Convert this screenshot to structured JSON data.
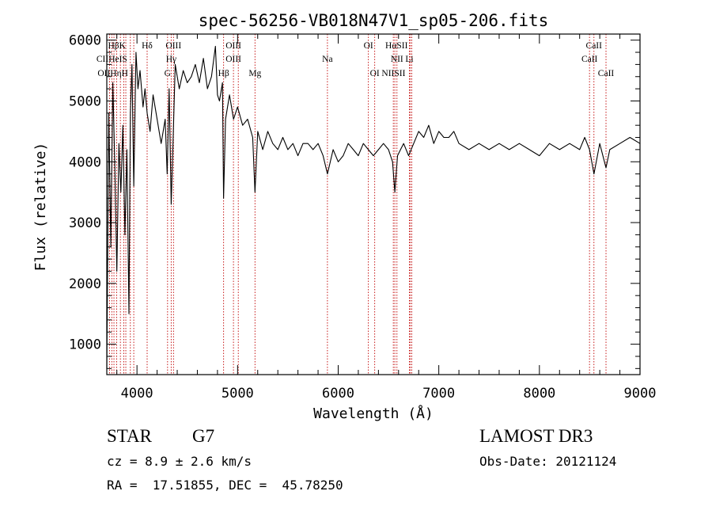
{
  "chart_data": {
    "type": "line",
    "title": "spec-56256-VB018N47V1_sp05-206.fits",
    "xlabel": "Wavelength (Å)",
    "ylabel": "Flux (relative)",
    "xlim": [
      3700,
      9000
    ],
    "ylim": [
      500,
      6100
    ],
    "x_ticks": [
      4000,
      5000,
      6000,
      7000,
      8000,
      9000
    ],
    "y_ticks": [
      1000,
      2000,
      3000,
      4000,
      5000,
      6000
    ],
    "series": [
      {
        "name": "spectrum",
        "x": [
          3700,
          3720,
          3740,
          3760,
          3780,
          3800,
          3820,
          3840,
          3860,
          3880,
          3900,
          3920,
          3934,
          3950,
          3968,
          3990,
          4010,
          4030,
          4060,
          4080,
          4101,
          4130,
          4160,
          4200,
          4240,
          4280,
          4300,
          4320,
          4340,
          4360,
          4380,
          4420,
          4460,
          4500,
          4540,
          4580,
          4620,
          4660,
          4700,
          4740,
          4780,
          4800,
          4820,
          4850,
          4861,
          4880,
          4920,
          4960,
          5000,
          5050,
          5100,
          5150,
          5173,
          5200,
          5250,
          5300,
          5350,
          5400,
          5450,
          5500,
          5550,
          5600,
          5650,
          5700,
          5750,
          5800,
          5850,
          5893,
          5950,
          6000,
          6050,
          6100,
          6150,
          6200,
          6250,
          6300,
          6350,
          6400,
          6450,
          6500,
          6540,
          6563,
          6590,
          6620,
          6650,
          6700,
          6750,
          6800,
          6850,
          6900,
          6950,
          7000,
          7050,
          7100,
          7150,
          7200,
          7300,
          7400,
          7500,
          7600,
          7700,
          7800,
          7900,
          8000,
          8100,
          8200,
          8300,
          8400,
          8450,
          8498,
          8542,
          8600,
          8662,
          8700,
          8800,
          8900,
          9000
        ],
        "y": [
          600,
          4800,
          2600,
          5300,
          3900,
          2200,
          4300,
          3500,
          4600,
          2800,
          4200,
          1500,
          4800,
          5600,
          3600,
          5800,
          5200,
          5500,
          4900,
          5200,
          4800,
          4500,
          5100,
          4700,
          4300,
          4700,
          3800,
          5200,
          3300,
          4400,
          5600,
          5200,
          5500,
          5300,
          5400,
          5600,
          5300,
          5700,
          5200,
          5400,
          5900,
          5100,
          5000,
          5300,
          3400,
          4700,
          5100,
          4700,
          4900,
          4600,
          4700,
          4400,
          3500,
          4500,
          4200,
          4500,
          4300,
          4200,
          4400,
          4200,
          4300,
          4100,
          4300,
          4300,
          4200,
          4300,
          4100,
          3800,
          4200,
          4000,
          4100,
          4300,
          4200,
          4100,
          4300,
          4200,
          4100,
          4200,
          4300,
          4200,
          4000,
          3500,
          4100,
          4200,
          4300,
          4100,
          4300,
          4500,
          4400,
          4600,
          4300,
          4500,
          4400,
          4400,
          4500,
          4300,
          4200,
          4300,
          4200,
          4300,
          4200,
          4300,
          4200,
          4100,
          4300,
          4200,
          4300,
          4200,
          4400,
          4200,
          3800,
          4300,
          3900,
          4200,
          4300,
          4400,
          4300
        ]
      }
    ],
    "spectral_lines": [
      {
        "label": "HβK",
        "wavelength": 3800,
        "row": 1
      },
      {
        "label": "Hδ",
        "wavelength": 4101,
        "row": 1
      },
      {
        "label": "OIII",
        "wavelength": 4363,
        "row": 1
      },
      {
        "label": "OIII",
        "wavelength": 4959,
        "row": 1
      },
      {
        "label": "OI",
        "wavelength": 6300,
        "row": 1
      },
      {
        "label": "HαSII",
        "wavelength": 6580,
        "row": 1
      },
      {
        "label": "CaII",
        "wavelength": 8542,
        "row": 1
      },
      {
        "label": "CIIHeIS",
        "wavelength": 3750,
        "row": 2
      },
      {
        "label": "Hγ",
        "wavelength": 4340,
        "row": 2
      },
      {
        "label": "OIII",
        "wavelength": 4959,
        "row": 2
      },
      {
        "label": "Na",
        "wavelength": 5893,
        "row": 2
      },
      {
        "label": "NII",
        "wavelength": 6584,
        "row": 2
      },
      {
        "label": "Li",
        "wavelength": 6708,
        "row": 2
      },
      {
        "label": "CaII",
        "wavelength": 8498,
        "row": 2
      },
      {
        "label": "OIIHηH",
        "wavelength": 3760,
        "row": 3
      },
      {
        "label": "G",
        "wavelength": 4304,
        "row": 3
      },
      {
        "label": "Hβ",
        "wavelength": 4861,
        "row": 3
      },
      {
        "label": "Mg",
        "wavelength": 5173,
        "row": 3
      },
      {
        "label": "OI",
        "wavelength": 6363,
        "row": 3
      },
      {
        "label": "NIISII",
        "wavelength": 6550,
        "row": 3
      },
      {
        "label": "CaII",
        "wavelength": 8662,
        "row": 3
      }
    ],
    "marker_wavelengths": [
      3727,
      3750,
      3771,
      3798,
      3835,
      3869,
      3889,
      3934,
      3968,
      4101,
      4304,
      4340,
      4363,
      4861,
      4959,
      5007,
      5173,
      5893,
      6300,
      6363,
      6548,
      6563,
      6584,
      6708,
      6717,
      6731,
      8498,
      8542,
      8662
    ],
    "marker_color": "#c00000",
    "line_color": "#000000"
  },
  "info": {
    "object_class": "STAR",
    "subclass": "G7",
    "survey": "LAMOST DR3",
    "redshift": "cz = 8.9 ± 2.6 km/s",
    "obs_date": "Obs-Date: 20121124",
    "coords": "RA =  17.51855, DEC =  45.78250"
  }
}
